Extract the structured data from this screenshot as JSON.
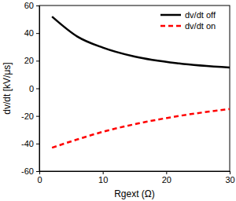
{
  "chart_data": {
    "type": "line",
    "x_label": "Rgext (Ω)",
    "y_label": "dv/dt [kV/μs]",
    "x": [
      2,
      6,
      10,
      15,
      22,
      30
    ],
    "series": [
      {
        "name": "dv/dt off",
        "color": "#000000",
        "line_style": "solid",
        "values": [
          52,
          37.5,
          29.5,
          23,
          18,
          15
        ]
      },
      {
        "name": "dv/dt on",
        "color": "#ff0000",
        "line_style": "dashed",
        "values": [
          -43,
          -37,
          -31.5,
          -26,
          -20,
          -15
        ]
      }
    ],
    "xlim": [
      0,
      30
    ],
    "xticks": [
      0,
      10,
      20,
      30
    ],
    "ylim": [
      -60,
      60
    ],
    "yticks": [
      -60,
      -40,
      -20,
      0,
      20,
      40,
      60
    ],
    "grid": false,
    "legend": "upper right"
  }
}
